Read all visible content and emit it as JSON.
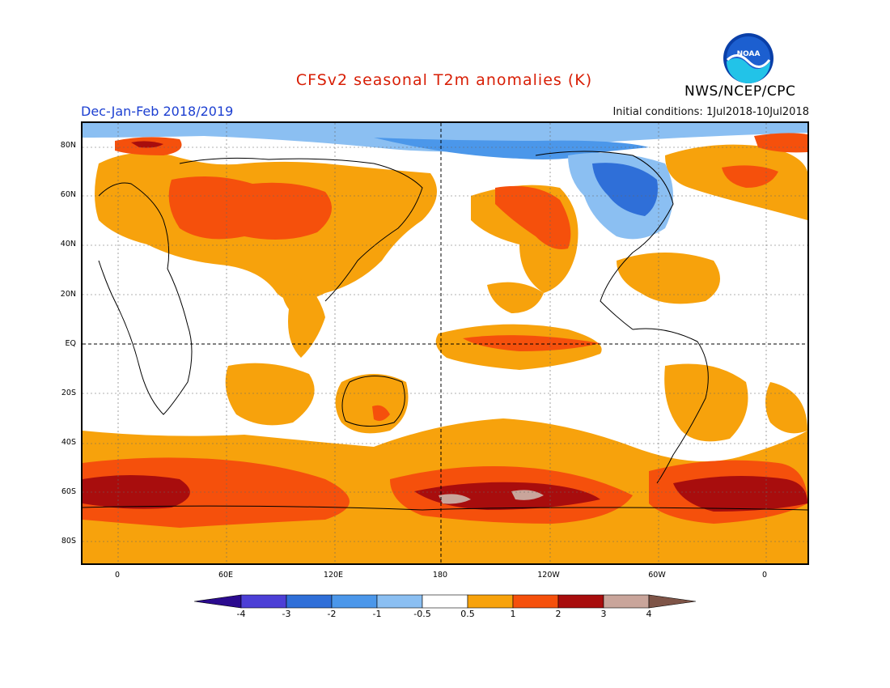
{
  "title": "CFSv2 seasonal T2m anomalies (K)",
  "season": "Dec-Jan-Feb 2018/2019",
  "initial_conditions": "Initial conditions: 1Jul2018-10Jul2018",
  "agency": "NWS/NCEP/CPC",
  "logo_text": "NOAA",
  "lat_labels": [
    "80N",
    "60N",
    "40N",
    "20N",
    "EQ",
    "20S",
    "40S",
    "60S",
    "80S"
  ],
  "lon_labels": [
    "0",
    "60E",
    "120E",
    "180",
    "120W",
    "60W",
    "0"
  ],
  "colorbar": {
    "labels": [
      "-4",
      "-3",
      "-2",
      "-1",
      "-0.5",
      "0.5",
      "1",
      "2",
      "3",
      "4"
    ],
    "colors": [
      "#2b0b8f",
      "#4c3fd6",
      "#2f6fd8",
      "#4b97ea",
      "#8bbff2",
      "#ffffff",
      "#f7a20c",
      "#f5500c",
      "#a80d0d",
      "#c9a59b",
      "#7e5447"
    ]
  },
  "map_colors": {
    "warm1": "#f7a20c",
    "warm2": "#f5500c",
    "warm3": "#a80d0d",
    "warm4": "#c9a59b",
    "cool1": "#8bbff2",
    "cool2": "#4b97ea",
    "cool3": "#2f6fd8",
    "coast": "#000000"
  }
}
